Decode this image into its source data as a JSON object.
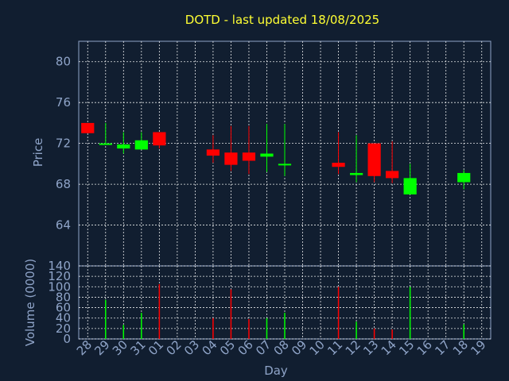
{
  "chart_data": [
    {
      "type": "candlestick",
      "title": "DOTD - last updated 18/08/2025",
      "xlabel": "Day",
      "ylabel": "Price",
      "ylim": [
        60,
        82
      ],
      "yticks": [
        64,
        68,
        72,
        76,
        80
      ],
      "grid": true,
      "colors": {
        "up": "#00ff00",
        "down": "#ff0000",
        "background": "#111e30",
        "text": "#8fa4c8",
        "title": "#ffff33"
      },
      "categories": [
        "28",
        "29",
        "30",
        "31",
        "01",
        "02",
        "03",
        "04",
        "05",
        "06",
        "07",
        "08",
        "09",
        "10",
        "11",
        "12",
        "13",
        "14",
        "15",
        "16",
        "17",
        "18",
        "19"
      ],
      "candles": [
        {
          "x": "28",
          "open": 74.0,
          "high": 74.0,
          "low": 73.0,
          "close": 73.0
        },
        {
          "x": "29",
          "open": 71.9,
          "high": 74.0,
          "low": 71.9,
          "close": 72.0
        },
        {
          "x": "30",
          "open": 71.5,
          "high": 73.1,
          "low": 71.0,
          "close": 71.9
        },
        {
          "x": "31",
          "open": 71.4,
          "high": 73.1,
          "low": 71.4,
          "close": 72.3
        },
        {
          "x": "01",
          "open": 73.1,
          "high": 73.1,
          "low": 71.5,
          "close": 71.8
        },
        {
          "x": "04",
          "open": 71.4,
          "high": 72.8,
          "low": 70.1,
          "close": 70.8
        },
        {
          "x": "05",
          "open": 71.1,
          "high": 73.7,
          "low": 69.3,
          "close": 69.9
        },
        {
          "x": "06",
          "open": 71.1,
          "high": 73.7,
          "low": 69.0,
          "close": 70.3
        },
        {
          "x": "07",
          "open": 70.7,
          "high": 73.9,
          "low": 69.2,
          "close": 71.0
        },
        {
          "x": "08",
          "open": 69.9,
          "high": 73.9,
          "low": 68.8,
          "close": 70.0
        },
        {
          "x": "11",
          "open": 70.1,
          "high": 73.1,
          "low": 69.0,
          "close": 69.7
        },
        {
          "x": "12",
          "open": 68.9,
          "high": 72.8,
          "low": 68.2,
          "close": 69.1
        },
        {
          "x": "13",
          "open": 72.0,
          "high": 72.0,
          "low": 68.2,
          "close": 68.8
        },
        {
          "x": "14",
          "open": 69.3,
          "high": 72.2,
          "low": 68.1,
          "close": 68.6
        },
        {
          "x": "15",
          "open": 67.0,
          "high": 70.0,
          "low": 67.0,
          "close": 68.6
        },
        {
          "x": "18",
          "open": 68.2,
          "high": 69.4,
          "low": 67.5,
          "close": 69.1
        }
      ]
    },
    {
      "type": "bar",
      "xlabel": "Day",
      "ylabel": "Volume (0000)",
      "ylim": [
        0,
        140
      ],
      "yticks": [
        0,
        20,
        40,
        60,
        80,
        100,
        120,
        140
      ],
      "grid": true,
      "bars": [
        {
          "x": "29",
          "value": 75,
          "dir": "up"
        },
        {
          "x": "30",
          "value": 27,
          "dir": "up"
        },
        {
          "x": "31",
          "value": 50,
          "dir": "up"
        },
        {
          "x": "01",
          "value": 105,
          "dir": "down"
        },
        {
          "x": "04",
          "value": 40,
          "dir": "down"
        },
        {
          "x": "05",
          "value": 95,
          "dir": "down"
        },
        {
          "x": "06",
          "value": 38,
          "dir": "down"
        },
        {
          "x": "07",
          "value": 40,
          "dir": "up"
        },
        {
          "x": "08",
          "value": 50,
          "dir": "up"
        },
        {
          "x": "11",
          "value": 100,
          "dir": "down"
        },
        {
          "x": "12",
          "value": 33,
          "dir": "up"
        },
        {
          "x": "13",
          "value": 20,
          "dir": "down"
        },
        {
          "x": "14",
          "value": 18,
          "dir": "down"
        },
        {
          "x": "15",
          "value": 100,
          "dir": "up"
        },
        {
          "x": "18",
          "value": 28,
          "dir": "up"
        }
      ]
    }
  ]
}
